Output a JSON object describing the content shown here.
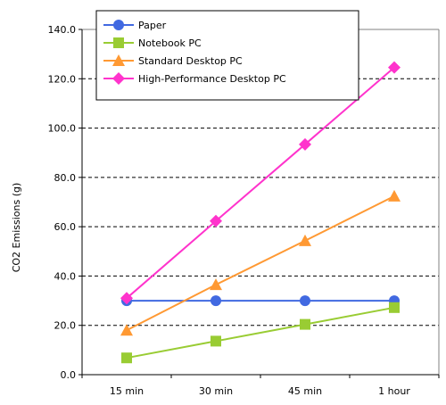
{
  "chart_data": {
    "type": "line",
    "title": "",
    "xlabel": "",
    "ylabel": "CO2 Emissions (g)",
    "categories": [
      "15 min",
      "30 min",
      "45 min",
      "1 hour"
    ],
    "ylim": [
      0,
      140
    ],
    "yticks": [
      "0.0",
      "20.0",
      "40.0",
      "60.0",
      "80.0",
      "100.0",
      "120.0",
      "140.0"
    ],
    "grid": "horizontal dashed",
    "legend_position": "top-left",
    "series": [
      {
        "name": "Paper",
        "values": [
          30,
          30,
          30,
          30
        ],
        "color": "#4169e1",
        "marker": "circle"
      },
      {
        "name": "Notebook PC",
        "values": [
          6.8,
          13.6,
          20.4,
          27.2
        ],
        "color": "#99cc33",
        "marker": "square"
      },
      {
        "name": "Standard Desktop PC",
        "values": [
          18,
          36.5,
          54.3,
          72.4
        ],
        "color": "#ff9933",
        "marker": "triangle"
      },
      {
        "name": "High-Performance Desktop PC",
        "values": [
          31,
          62.3,
          93.4,
          124.6
        ],
        "color": "#ff33cc",
        "marker": "diamond"
      }
    ]
  }
}
